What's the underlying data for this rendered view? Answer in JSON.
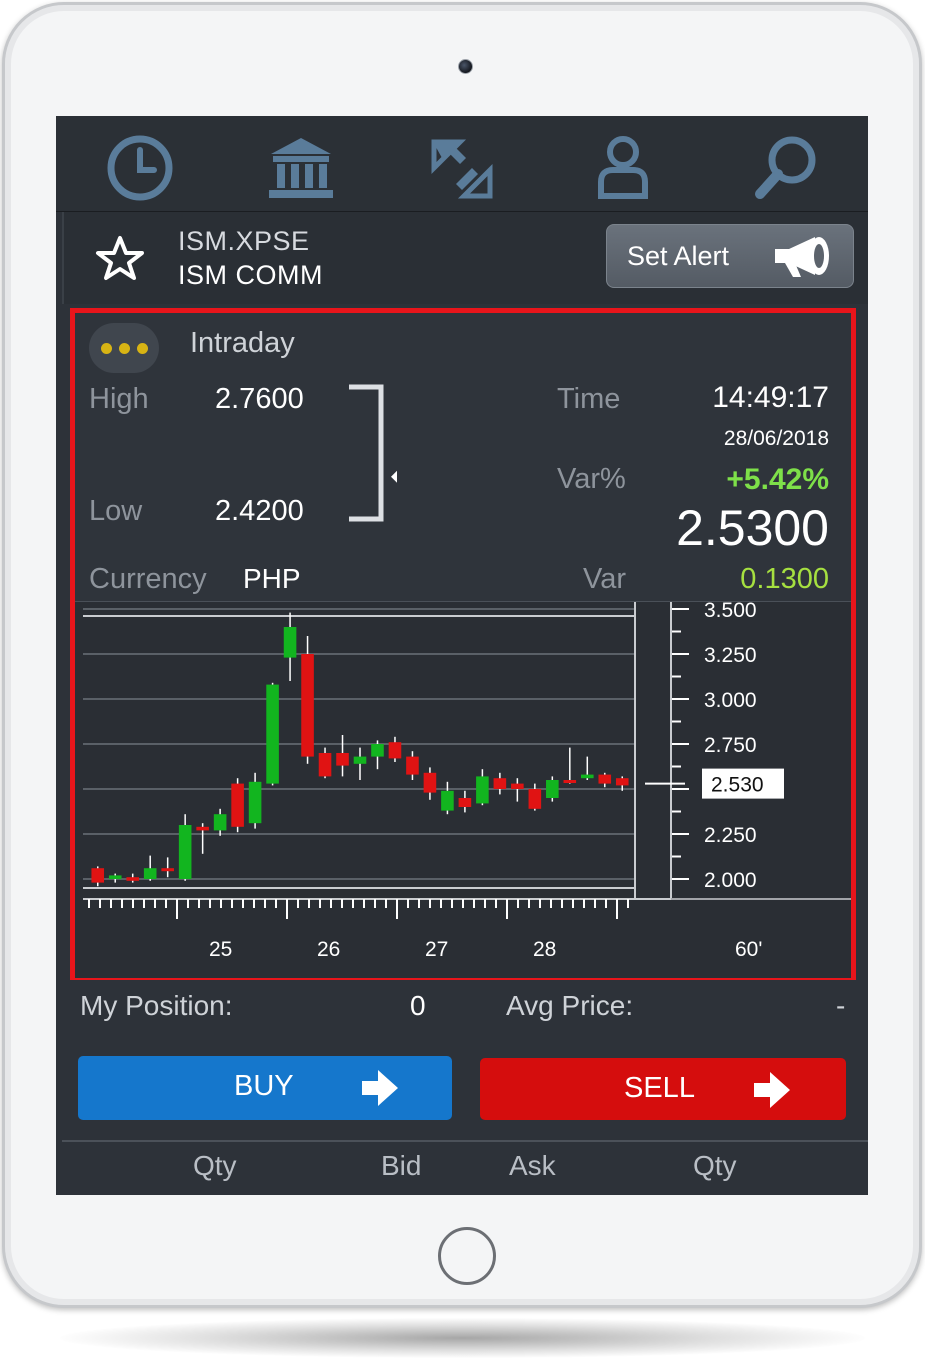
{
  "nav": {
    "items": [
      {
        "name": "history",
        "icon": "clock-icon"
      },
      {
        "name": "market",
        "icon": "bank-icon"
      },
      {
        "name": "exchange",
        "icon": "swap-icon"
      },
      {
        "name": "account",
        "icon": "user-icon"
      },
      {
        "name": "search",
        "icon": "search-icon"
      }
    ]
  },
  "instrument": {
    "code": "ISM.XPSE",
    "name": "ISM COMM",
    "alert_label": "Set Alert"
  },
  "quote": {
    "period": "Intraday",
    "high_label": "High",
    "high": "2.7600",
    "low_label": "Low",
    "low": "2.4200",
    "currency_label": "Currency",
    "currency": "PHP",
    "time_label": "Time",
    "time": "14:49:17",
    "date": "28/06/2018",
    "varpct_label": "Var%",
    "varpct": "+5.42%",
    "last": "2.5300",
    "var_label": "Var",
    "var": "0.1300",
    "last_position_fraction": 0.32
  },
  "chart_data": {
    "type": "candlestick",
    "y_ticks": [
      "3.500",
      "3.250",
      "3.000",
      "2.750",
      "2.500",
      "2.250",
      "2.000"
    ],
    "ylim": [
      1.95,
      3.5
    ],
    "x_ticks": [
      "25",
      "26",
      "27",
      "28"
    ],
    "interval_label": "60'",
    "last_price_label": "2.530",
    "last_price": 2.53,
    "candles": [
      {
        "o": 2.06,
        "c": 1.98,
        "h": 2.07,
        "l": 1.96
      },
      {
        "o": 2.0,
        "c": 2.02,
        "h": 2.03,
        "l": 1.98
      },
      {
        "o": 2.01,
        "c": 1.99,
        "h": 2.03,
        "l": 1.98
      },
      {
        "o": 2.0,
        "c": 2.06,
        "h": 2.13,
        "l": 1.99
      },
      {
        "o": 2.06,
        "c": 2.05,
        "h": 2.12,
        "l": 2.01
      },
      {
        "o": 2.0,
        "c": 2.3,
        "h": 2.36,
        "l": 1.99
      },
      {
        "o": 2.29,
        "c": 2.27,
        "h": 2.31,
        "l": 2.14
      },
      {
        "o": 2.27,
        "c": 2.36,
        "h": 2.39,
        "l": 2.24
      },
      {
        "o": 2.53,
        "c": 2.29,
        "h": 2.56,
        "l": 2.26
      },
      {
        "o": 2.31,
        "c": 2.54,
        "h": 2.59,
        "l": 2.28
      },
      {
        "o": 2.53,
        "c": 3.08,
        "h": 3.09,
        "l": 2.52
      },
      {
        "o": 3.23,
        "c": 3.4,
        "h": 3.48,
        "l": 3.1
      },
      {
        "o": 3.25,
        "c": 2.68,
        "h": 3.35,
        "l": 2.64
      },
      {
        "o": 2.7,
        "c": 2.57,
        "h": 2.73,
        "l": 2.56
      },
      {
        "o": 2.7,
        "c": 2.63,
        "h": 2.8,
        "l": 2.57
      },
      {
        "o": 2.64,
        "c": 2.68,
        "h": 2.73,
        "l": 2.55
      },
      {
        "o": 2.68,
        "c": 2.75,
        "h": 2.77,
        "l": 2.61
      },
      {
        "o": 2.76,
        "c": 2.67,
        "h": 2.79,
        "l": 2.65
      },
      {
        "o": 2.68,
        "c": 2.58,
        "h": 2.71,
        "l": 2.55
      },
      {
        "o": 2.59,
        "c": 2.48,
        "h": 2.62,
        "l": 2.44
      },
      {
        "o": 2.38,
        "c": 2.49,
        "h": 2.54,
        "l": 2.36
      },
      {
        "o": 2.45,
        "c": 2.4,
        "h": 2.49,
        "l": 2.37
      },
      {
        "o": 2.42,
        "c": 2.57,
        "h": 2.61,
        "l": 2.41
      },
      {
        "o": 2.56,
        "c": 2.5,
        "h": 2.59,
        "l": 2.47
      },
      {
        "o": 2.53,
        "c": 2.5,
        "h": 2.56,
        "l": 2.43
      },
      {
        "o": 2.5,
        "c": 2.39,
        "h": 2.53,
        "l": 2.38
      },
      {
        "o": 2.45,
        "c": 2.55,
        "h": 2.57,
        "l": 2.43
      },
      {
        "o": 2.55,
        "c": 2.54,
        "h": 2.73,
        "l": 2.53
      },
      {
        "o": 2.56,
        "c": 2.58,
        "h": 2.68,
        "l": 2.55
      },
      {
        "o": 2.58,
        "c": 2.53,
        "h": 2.59,
        "l": 2.51
      },
      {
        "o": 2.56,
        "c": 2.52,
        "h": 2.57,
        "l": 2.49
      }
    ]
  },
  "position": {
    "my_position_label": "My Position:",
    "my_position": "0",
    "avg_price_label": "Avg Price:",
    "avg_price": "-"
  },
  "actions": {
    "buy_label": "BUY",
    "sell_label": "SELL"
  },
  "book": {
    "columns": [
      "Qty",
      "Bid",
      "Ask",
      "Qty"
    ]
  },
  "colors": {
    "up": "#12b51f",
    "down": "#e01313",
    "highlight_border": "#e8151b",
    "buy": "#1577cc",
    "sell": "#d50d0d",
    "positive_text": "#7ee049"
  }
}
